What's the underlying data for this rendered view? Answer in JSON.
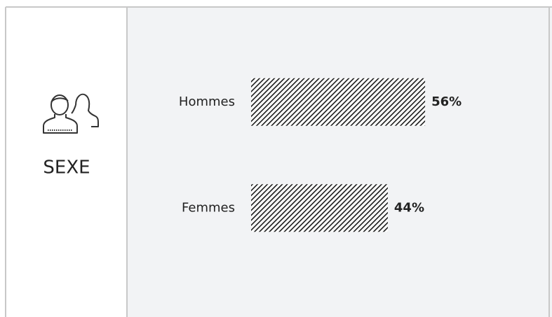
{
  "chart_data": {
    "type": "bar",
    "orientation": "horizontal",
    "title": "SEXE",
    "categories": [
      "Hommes",
      "Femmes"
    ],
    "values": [
      56,
      44
    ],
    "value_labels": [
      "56%",
      "44%"
    ],
    "color": "#1a1a1a",
    "pattern": "hatch",
    "xlim": [
      0,
      100
    ]
  }
}
